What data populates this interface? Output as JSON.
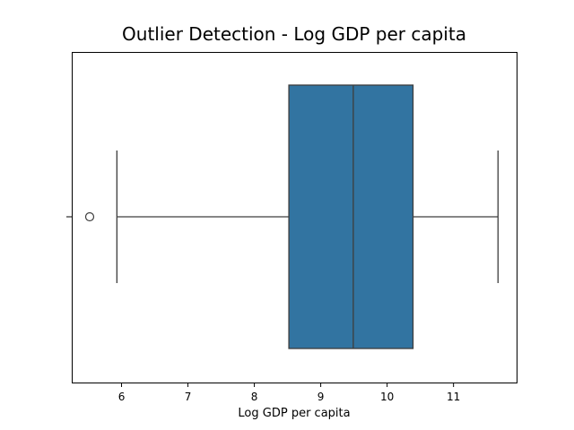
{
  "chart_data": {
    "type": "box",
    "title": "Outlier Detection - Log GDP per capita",
    "xlabel": "Log GDP per capita",
    "ylabel": "",
    "orientation": "horizontal",
    "xlim": [
      5.25,
      11.95
    ],
    "xticks": [
      "6",
      "7",
      "8",
      "9",
      "10",
      "11"
    ],
    "box": {
      "whisker_low": 5.93,
      "q1": 8.52,
      "median": 9.49,
      "q3": 10.39,
      "whisker_high": 11.67,
      "outliers": [
        5.52
      ]
    },
    "colors": {
      "box_fill": "#3274a1",
      "line": "#3d3d3d"
    },
    "grid": false,
    "legend": "none"
  }
}
